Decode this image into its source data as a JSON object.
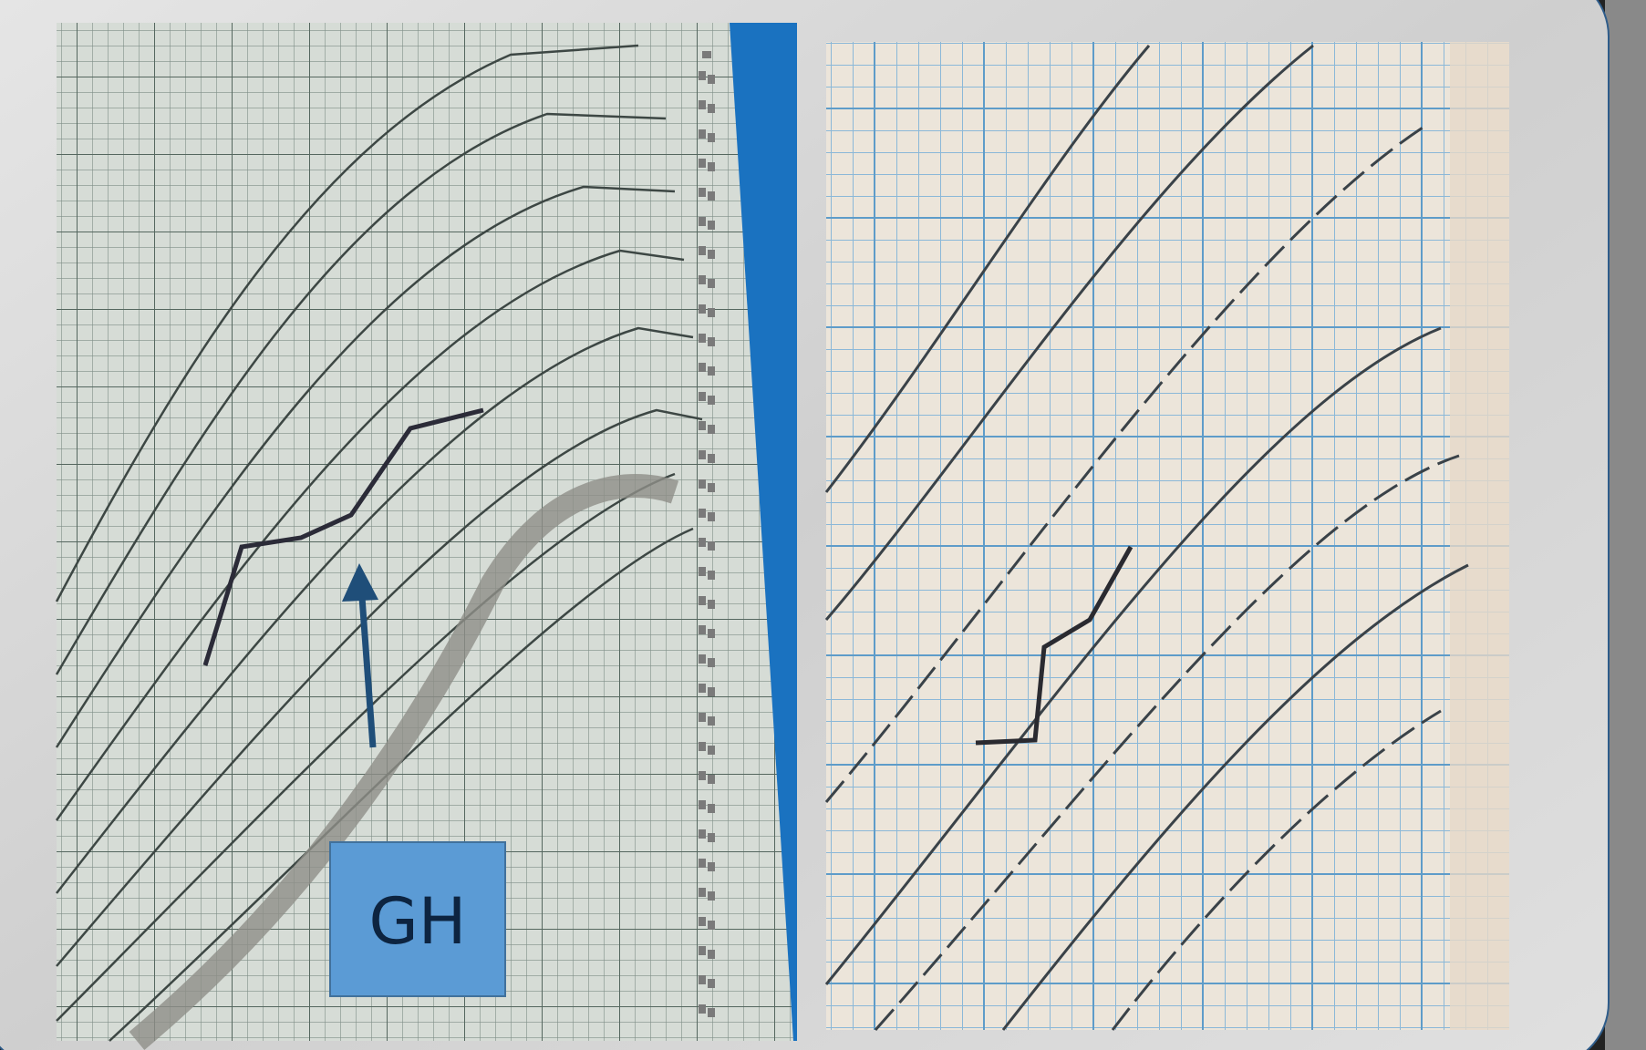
{
  "label": "GH"
}
